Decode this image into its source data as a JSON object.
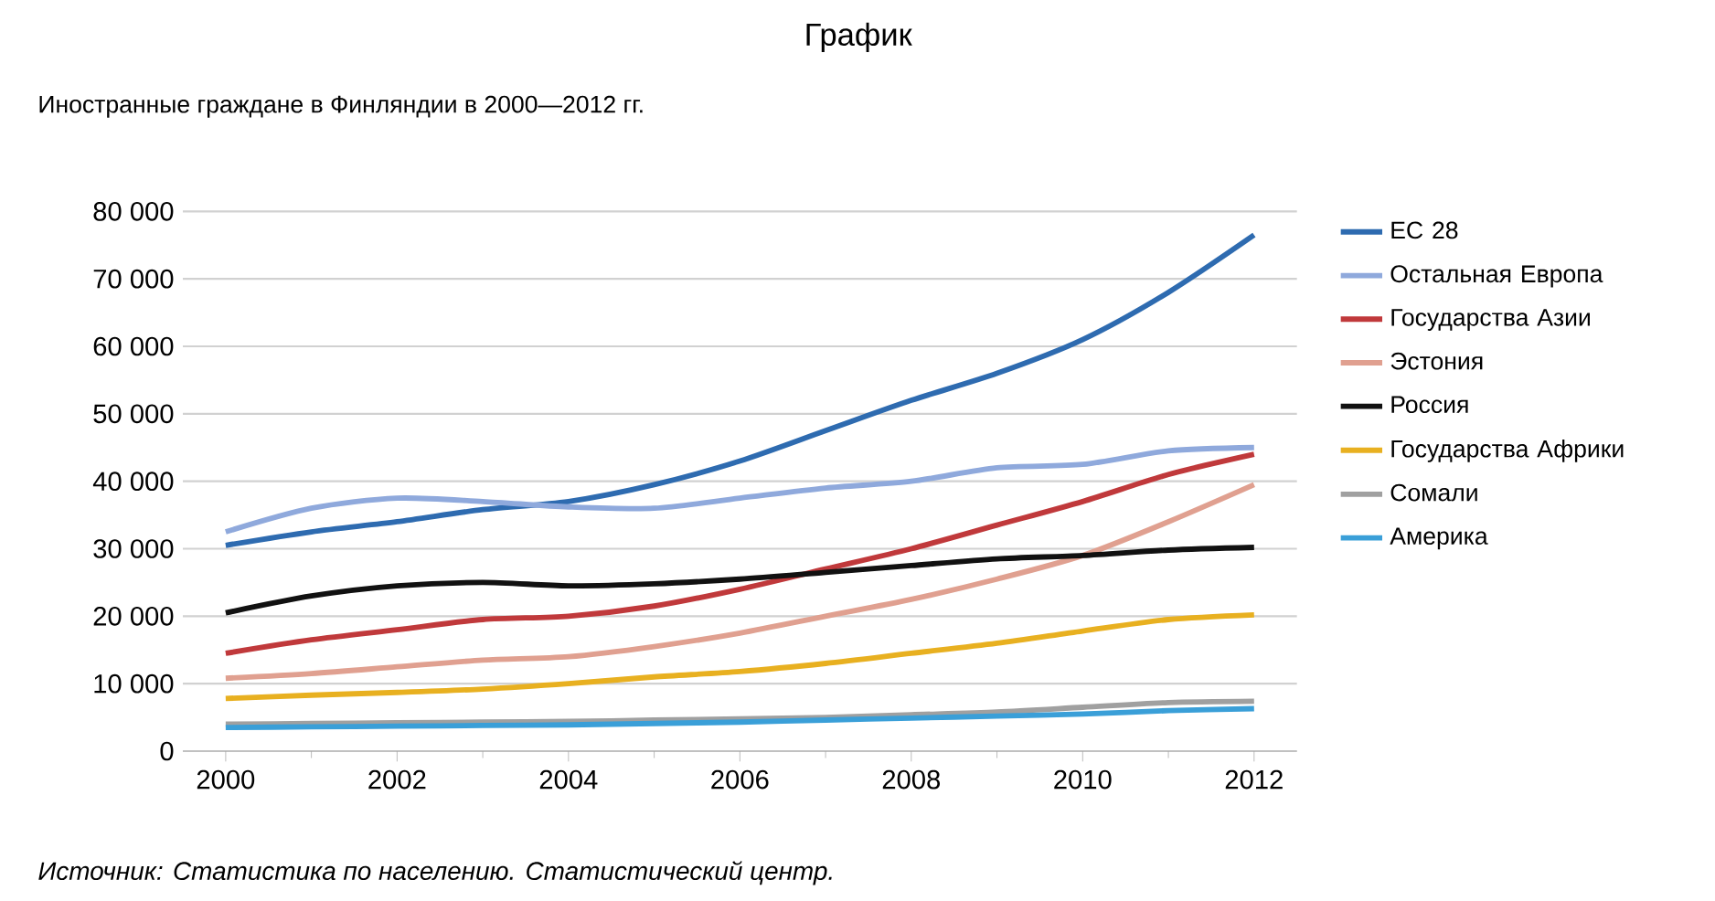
{
  "chart_data": {
    "type": "line",
    "title": "График",
    "subtitle": "Иностранные граждане в Финляндии в 2000—2012 гг.",
    "annotations": [
      "*Источник: Статистика по населению. Статистический центр.*"
    ],
    "x": [
      2000,
      2001,
      2002,
      2003,
      2004,
      2005,
      2006,
      2007,
      2008,
      2009,
      2010,
      2011,
      2012
    ],
    "xlim": [
      1999.5,
      2012.5
    ],
    "xticks": [
      2000,
      2002,
      2004,
      2006,
      2008,
      2010,
      2012
    ],
    "ylim": [
      0,
      80000
    ],
    "yticks": [
      {
        "value": 0,
        "label": "0"
      },
      {
        "value": 10000,
        "label": "10 000"
      },
      {
        "value": 20000,
        "label": "20 000"
      },
      {
        "value": 30000,
        "label": "30 000"
      },
      {
        "value": 40000,
        "label": "40 000"
      },
      {
        "value": 50000,
        "label": "50 000"
      },
      {
        "value": 60000,
        "label": "60 000"
      },
      {
        "value": 70000,
        "label": "70 000"
      },
      {
        "value": 80000,
        "label": "80 000"
      }
    ],
    "grid": "y",
    "legend": "right",
    "marker": "none",
    "line_style": "solid",
    "series": [
      {
        "name": "ЕС 28",
        "color": "#2e6bb0",
        "values": [
          30500,
          32500,
          34000,
          35800,
          37000,
          39500,
          43000,
          47500,
          52000,
          56000,
          61000,
          68000,
          76500
        ]
      },
      {
        "name": "Остальная Европа",
        "color": "#8fa9dc",
        "values": [
          32500,
          36000,
          37500,
          37000,
          36200,
          36000,
          37500,
          39000,
          40000,
          42000,
          42500,
          44500,
          45000
        ]
      },
      {
        "name": "Государства Азии",
        "color": "#c0393b",
        "values": [
          14500,
          16500,
          18000,
          19500,
          20000,
          21500,
          24000,
          27000,
          30000,
          33500,
          37000,
          41000,
          44000
        ]
      },
      {
        "name": "Эстония",
        "color": "#e0a090",
        "values": [
          10800,
          11500,
          12500,
          13500,
          14000,
          15500,
          17500,
          20000,
          22500,
          25500,
          29000,
          34000,
          39500
        ]
      },
      {
        "name": "Россия",
        "color": "#111111",
        "values": [
          20500,
          23000,
          24500,
          25000,
          24500,
          24800,
          25500,
          26500,
          27500,
          28500,
          29000,
          29800,
          30200
        ]
      },
      {
        "name": "Государства Африки",
        "color": "#e8b020",
        "values": [
          7800,
          8300,
          8700,
          9200,
          10000,
          11000,
          11800,
          13000,
          14500,
          16000,
          17800,
          19500,
          20200
        ]
      },
      {
        "name": "Сомали",
        "color": "#a0a0a0",
        "values": [
          4000,
          4100,
          4200,
          4300,
          4400,
          4600,
          4800,
          5000,
          5400,
          5800,
          6500,
          7200,
          7400
        ]
      },
      {
        "name": "Америка",
        "color": "#3a9fd8",
        "values": [
          3500,
          3600,
          3700,
          3800,
          3900,
          4100,
          4300,
          4600,
          4900,
          5200,
          5500,
          6000,
          6300
        ]
      }
    ]
  }
}
